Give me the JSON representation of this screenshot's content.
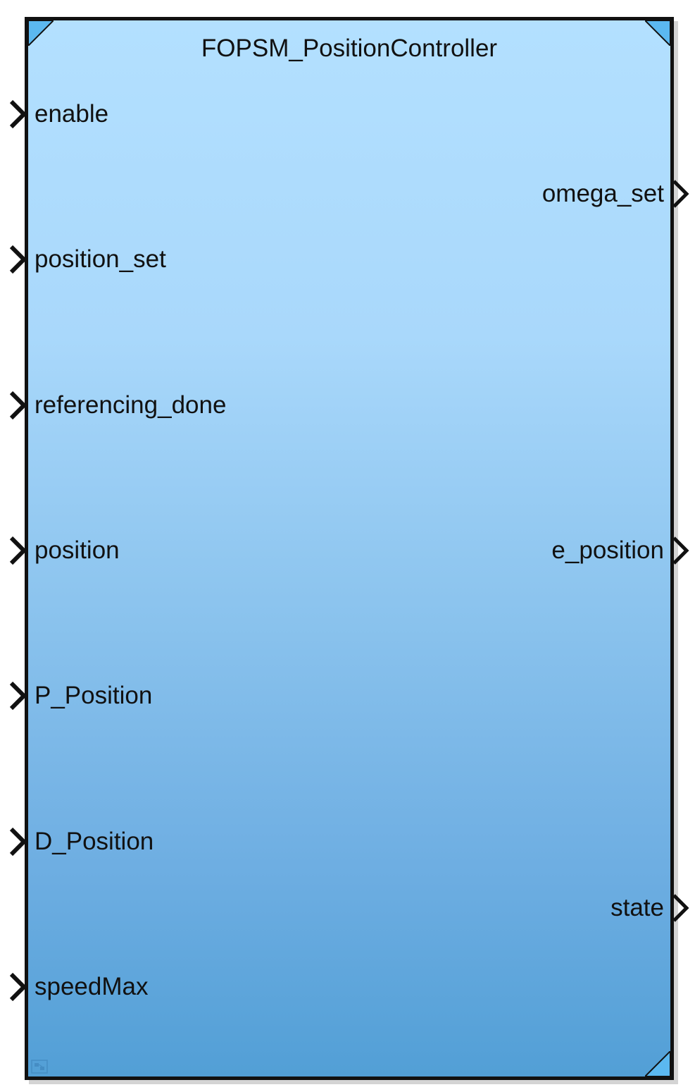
{
  "block": {
    "title": "FOPSM_PositionController",
    "fill_top": "#b3e0ff",
    "fill_bottom": "#529fd6",
    "border_color": "#111111",
    "corner_color": "#5bb8f0"
  },
  "inputs": [
    {
      "label": "enable"
    },
    {
      "label": "position_set"
    },
    {
      "label": "referencing_done"
    },
    {
      "label": "position"
    },
    {
      "label": "P_Position"
    },
    {
      "label": "D_Position"
    },
    {
      "label": "speedMax"
    }
  ],
  "outputs": [
    {
      "label": "omega_set"
    },
    {
      "label": "e_position"
    },
    {
      "label": "state"
    }
  ],
  "icons": {
    "port_arrow": "chevron-right-icon",
    "subsystem": "subsystem-icon"
  }
}
